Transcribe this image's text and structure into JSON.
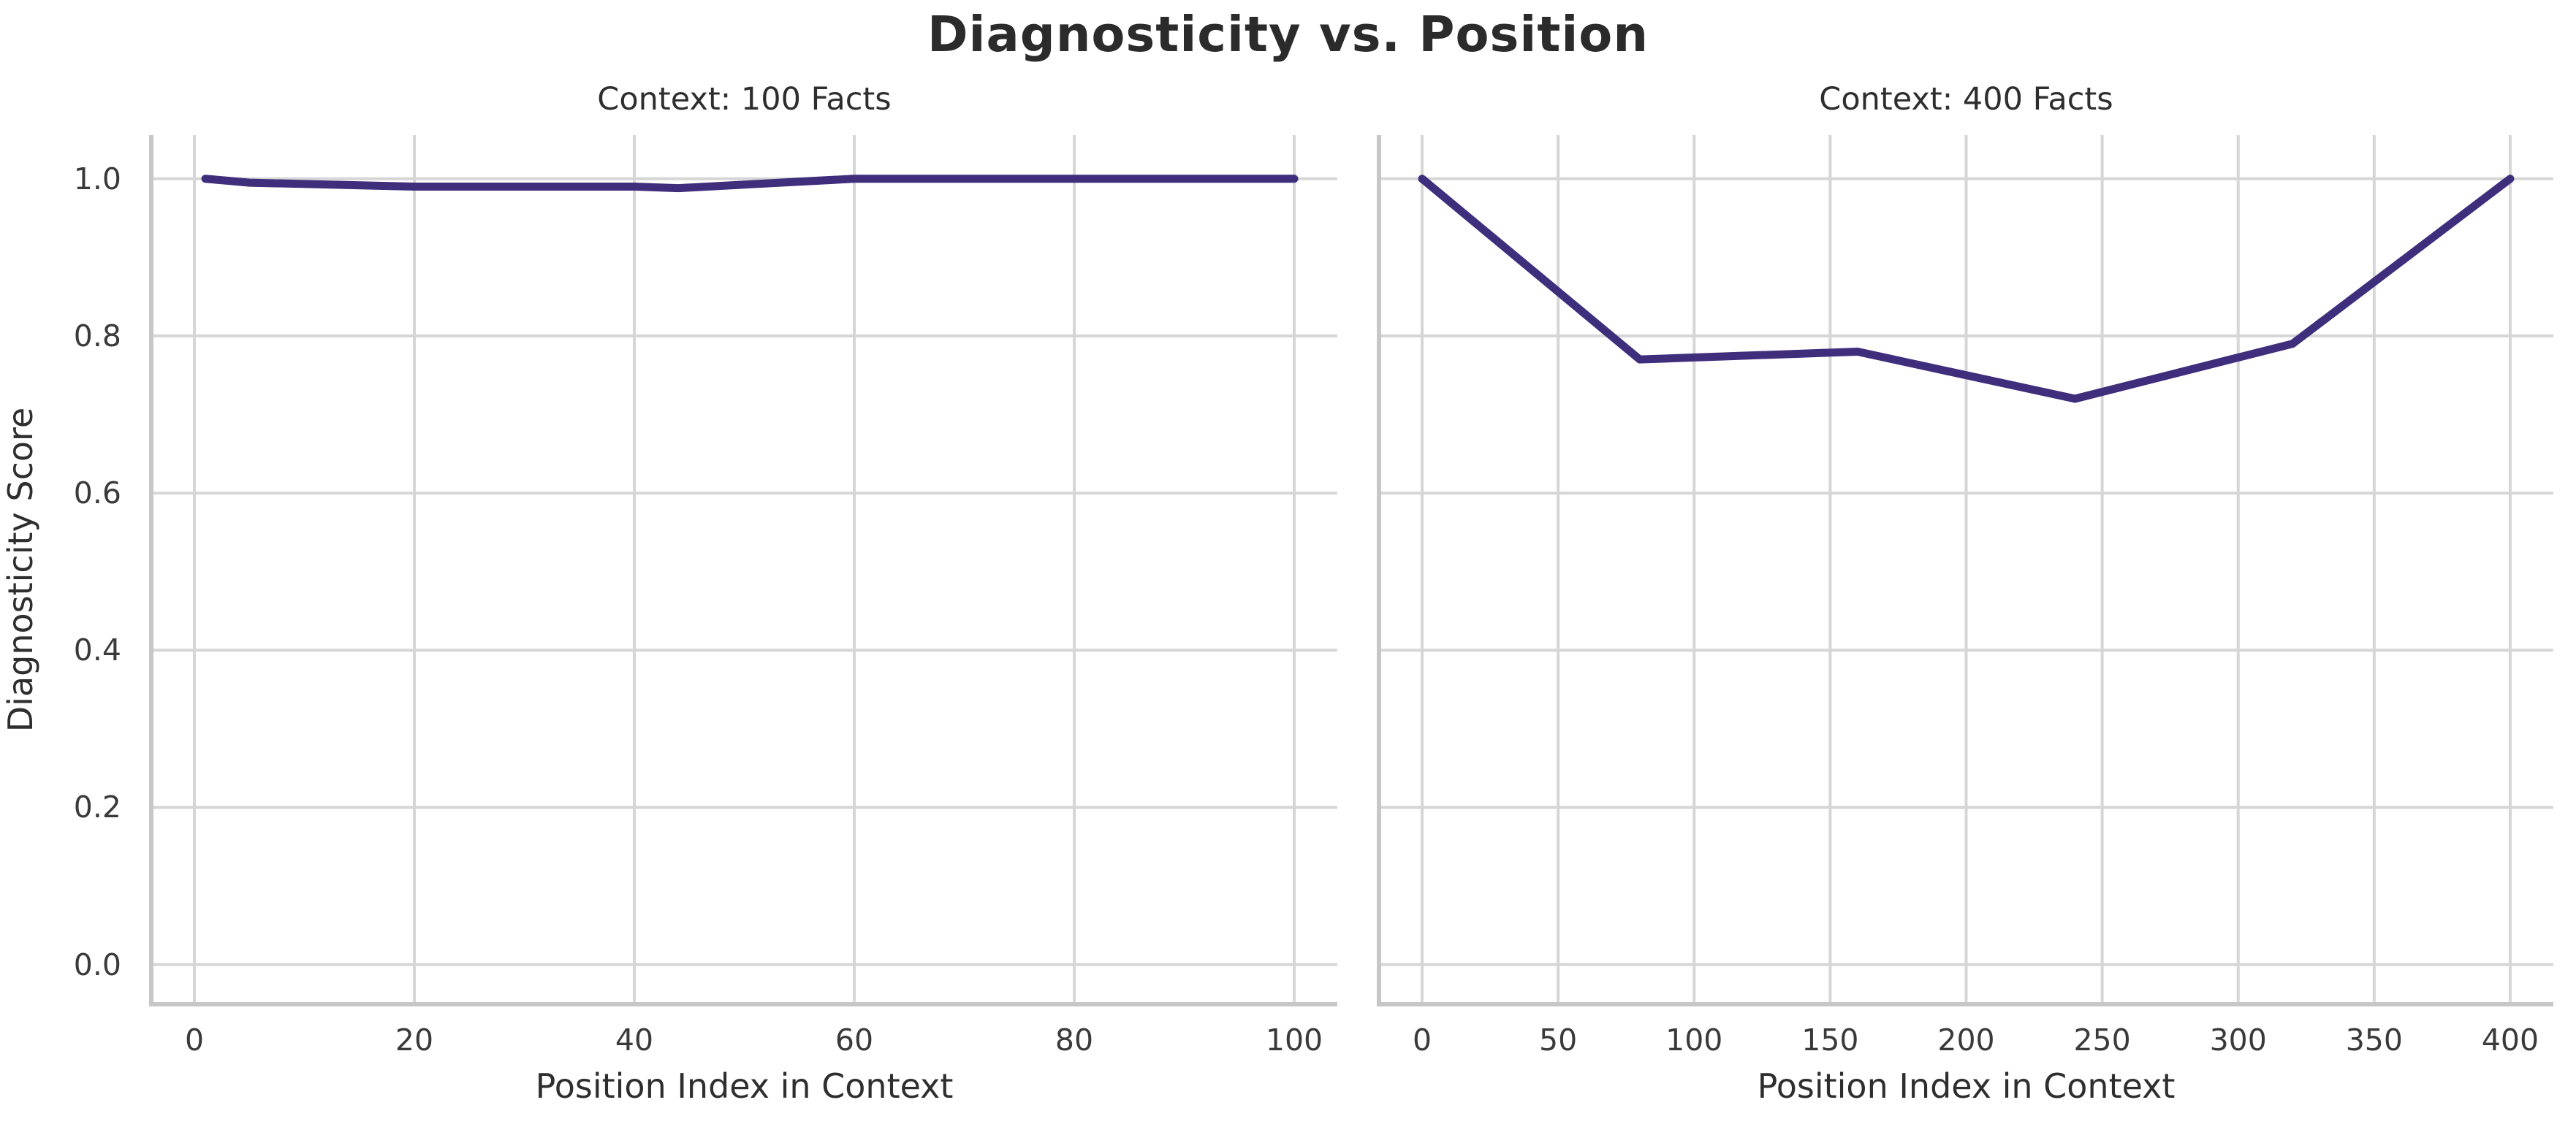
{
  "figure": {
    "title": "Diagnosticity vs. Position",
    "ylabel": "Diagnosticity Score",
    "background_color": "#ffffff",
    "title_color": "#2b2b2b",
    "text_color": "#2e2e2e",
    "tick_color": "#3a3a3a",
    "grid_color": "#d6d6d6",
    "spine_color": "#c7c7c7",
    "line_color": "#3f2e7c"
  },
  "chart_data": [
    {
      "type": "line",
      "title": "Context: 100 Facts",
      "xlabel": "Position Index in Context",
      "ylabel": "Diagnosticity Score",
      "x": [
        1,
        5,
        20,
        40,
        44,
        60,
        80,
        100
      ],
      "y": [
        1.0,
        0.995,
        0.99,
        0.99,
        0.988,
        1.0,
        1.0,
        1.0
      ],
      "xticks": [
        0,
        20,
        40,
        60,
        80,
        100
      ],
      "yticks": [
        0.0,
        0.2,
        0.4,
        0.6,
        0.8,
        1.0
      ],
      "xlim": [
        -3.92,
        103.92
      ],
      "ylim": [
        -0.0505,
        1.0555
      ],
      "grid": true,
      "legend_position": "none"
    },
    {
      "type": "line",
      "title": "Context: 400 Facts",
      "xlabel": "Position Index in Context",
      "ylabel": "",
      "x": [
        0,
        80,
        160,
        240,
        320,
        400
      ],
      "y": [
        1.0,
        0.77,
        0.78,
        0.72,
        0.79,
        1.0
      ],
      "xticks": [
        0,
        50,
        100,
        150,
        200,
        250,
        300,
        350,
        400
      ],
      "yticks": [
        0.0,
        0.2,
        0.4,
        0.6,
        0.8,
        1.0
      ],
      "xlim": [
        -15.86,
        415.86
      ],
      "ylim": [
        -0.0505,
        1.0555
      ],
      "grid": true,
      "legend_position": "none"
    }
  ]
}
